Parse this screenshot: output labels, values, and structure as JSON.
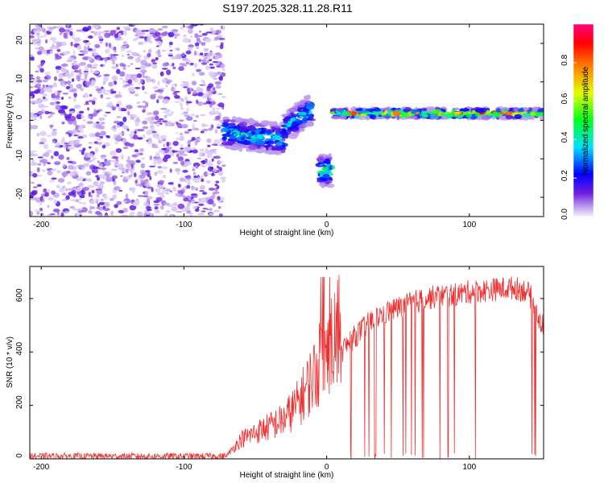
{
  "chart_data": [
    {
      "type": "heatmap",
      "title": "S197.2025.328.11.28.R11",
      "xlabel": "Height of straight line (km)",
      "ylabel": "Frequency (Hz)",
      "xlim": [
        -208,
        152
      ],
      "ylim": [
        -25,
        25
      ],
      "xticks": [
        -200,
        -100,
        0,
        100
      ],
      "yticks": [
        -20,
        -10,
        0,
        10,
        20
      ],
      "colorbar": {
        "label": "Normalized spectral amplitude",
        "range": [
          0,
          1
        ],
        "ticks": [
          0.0,
          0.2,
          0.4,
          0.6,
          0.8
        ]
      },
      "structures": [
        {
          "name": "noise",
          "x": [
            -208,
            -72
          ],
          "freq": [
            -25,
            25
          ],
          "amplitude": 0.15
        },
        {
          "name": "descending-track",
          "x": [
            -72,
            -30
          ],
          "freq_center": [
            -3,
            -5
          ],
          "amplitude": 0.45
        },
        {
          "name": "rising-track",
          "x": [
            -30,
            -10
          ],
          "freq_center": [
            -2,
            3
          ],
          "amplitude": 0.45
        },
        {
          "name": "isolated-blob",
          "x": [
            -5,
            3
          ],
          "freq_center": -13,
          "amplitude": 0.55
        },
        {
          "name": "stable-track",
          "x": [
            5,
            152
          ],
          "freq_center": 1.8,
          "amplitude": 0.9
        }
      ]
    },
    {
      "type": "line",
      "title": "",
      "xlabel": "Height of straight line (km)",
      "ylabel": "SNR (10 * v/v)",
      "xlim": [
        -208,
        152
      ],
      "ylim": [
        0,
        720
      ],
      "xticks": [
        -200,
        -100,
        0,
        100
      ],
      "yticks": [
        0,
        200,
        400,
        600
      ],
      "color": "#f03030",
      "series": [
        {
          "name": "SNR",
          "x": [
            -208,
            -150,
            -100,
            -70,
            -60,
            -50,
            -40,
            -30,
            -20,
            -10,
            0,
            10,
            20,
            30,
            40,
            50,
            60,
            70,
            80,
            90,
            100,
            110,
            120,
            130,
            140,
            145,
            150
          ],
          "y": [
            10,
            10,
            10,
            10,
            60,
            80,
            100,
            120,
            170,
            250,
            330,
            400,
            460,
            510,
            545,
            565,
            585,
            600,
            610,
            615,
            625,
            630,
            635,
            640,
            630,
            590,
            500
          ]
        }
      ]
    }
  ]
}
